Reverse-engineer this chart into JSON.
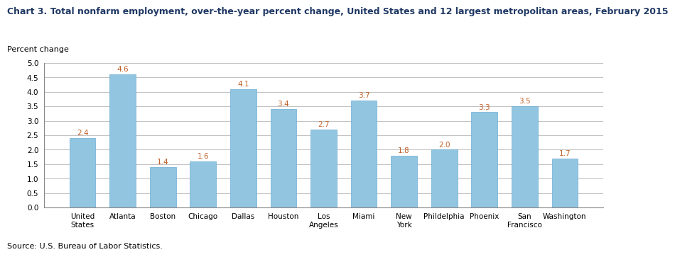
{
  "title": "Chart 3. Total nonfarm employment, over-the-year percent change, United States and 12 largest metropolitan areas, February 2015",
  "ylabel": "Percent change",
  "categories": [
    "United\nStates",
    "Atlanta",
    "Boston",
    "Chicago",
    "Dallas",
    "Houston",
    "Los\nAngeles",
    "Miami",
    "New\nYork",
    "Phildelphia",
    "Phoenix",
    "San\nFrancisco",
    "Washington"
  ],
  "values": [
    2.4,
    4.6,
    1.4,
    1.6,
    4.1,
    3.4,
    2.7,
    3.7,
    1.8,
    2.0,
    3.3,
    3.5,
    1.7
  ],
  "bar_color": "#92C5E0",
  "bar_edge_color": "#6AADD5",
  "ylim": [
    0,
    5.0
  ],
  "yticks": [
    0.0,
    0.5,
    1.0,
    1.5,
    2.0,
    2.5,
    3.0,
    3.5,
    4.0,
    4.5,
    5.0
  ],
  "source": "Source: U.S. Bureau of Labor Statistics.",
  "value_color": "#C0622A",
  "title_color": "#1F3864",
  "title_fontsize": 9.0,
  "axis_fontsize": 8.0,
  "tick_fontsize": 7.5,
  "value_fontsize": 7.5
}
